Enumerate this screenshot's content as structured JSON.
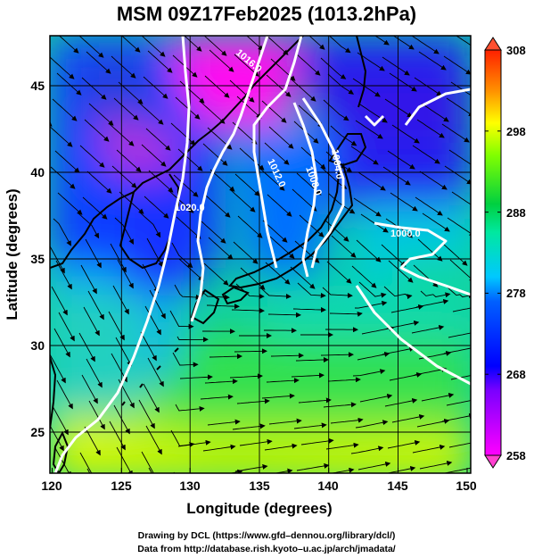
{
  "title": "MSM 09Z17Feb2025 (1013.2hPa)",
  "xlabel": "Longitude (degrees)",
  "ylabel": "Latitude  (degrees)",
  "x_ticks": [
    "120",
    "125",
    "130",
    "135",
    "140",
    "145",
    "150"
  ],
  "y_ticks": [
    "25",
    "30",
    "35",
    "40",
    "45"
  ],
  "colorbar_ticks": [
    "258",
    "268",
    "278",
    "288",
    "298",
    "308"
  ],
  "credits": {
    "line1": "Drawing by DCL (https://www.gfd–dennou.org/library/dcl/)",
    "line2": "Data from http://database.rish.kyoto–u.ac.jp/arch/jmadata/"
  },
  "chart_data": {
    "type": "heatmap",
    "variable_range": [
      258,
      308
    ],
    "xlim": [
      120,
      150
    ],
    "ylim": [
      22.8,
      48
    ],
    "grid": true,
    "contour_labels": [
      "1016.0",
      "1012.0",
      "1008.0",
      "1004.0",
      "1020.0",
      "1000.0"
    ],
    "colormap": [
      "#ff00ff",
      "#0000ff",
      "#00c8ff",
      "#00e040",
      "#ffff00",
      "#ff6000",
      "#ff0000"
    ]
  }
}
